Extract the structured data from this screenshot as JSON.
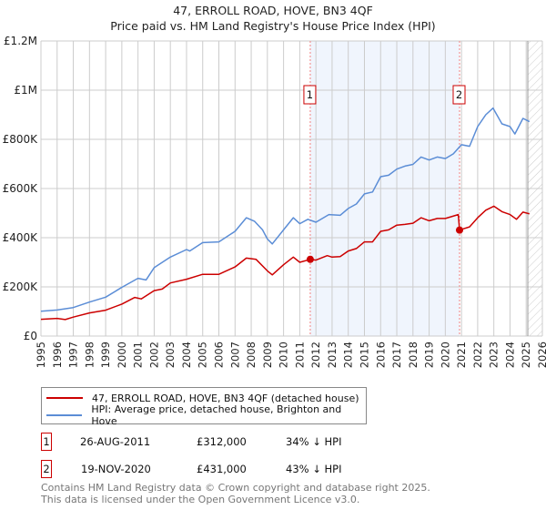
{
  "chart_data": {
    "type": "line",
    "title": "47, ERROLL ROAD, HOVE, BN3 4QF",
    "subtitle": "Price paid vs. HM Land Registry's House Price Index (HPI)",
    "xlabel": "",
    "ylabel": "",
    "xlim": [
      1995,
      2026
    ],
    "ylim": [
      0,
      1200000
    ],
    "x_ticks": [
      "1995",
      "1996",
      "1997",
      "1998",
      "1999",
      "2000",
      "2001",
      "2002",
      "2003",
      "2004",
      "2005",
      "2006",
      "2007",
      "2008",
      "2009",
      "2010",
      "2011",
      "2012",
      "2013",
      "2014",
      "2015",
      "2016",
      "2017",
      "2018",
      "2019",
      "2020",
      "2021",
      "2022",
      "2023",
      "2024",
      "2025",
      "2026"
    ],
    "y_ticks": [
      {
        "v": 0,
        "label": "£0"
      },
      {
        "v": 200000,
        "label": "£200K"
      },
      {
        "v": 400000,
        "label": "£400K"
      },
      {
        "v": 600000,
        "label": "£600K"
      },
      {
        "v": 800000,
        "label": "£800K"
      },
      {
        "v": 1000000,
        "label": "£1M"
      },
      {
        "v": 1200000,
        "label": "£1.2M"
      }
    ],
    "grid": true,
    "shaded_period": [
      2011.65,
      2020.88
    ],
    "forecast_hatch_from": 2025.1,
    "series": [
      {
        "name": "47, ERROLL ROAD, HOVE, BN3 4QF (detached house)",
        "color": "#cc0000",
        "x": [
          1995,
          1996,
          1996.5,
          1997,
          1998,
          1999,
          2000,
          2000.8,
          2001.2,
          2002,
          2002.5,
          2003,
          2004,
          2005,
          2006,
          2007,
          2007.7,
          2008.3,
          2009,
          2009.3,
          2010,
          2010.6,
          2011,
          2011.65,
          2012,
          2012.7,
          2013,
          2013.5,
          2014,
          2014.5,
          2015,
          2015.5,
          2016,
          2016.5,
          2017,
          2017.5,
          2018,
          2018.5,
          2019,
          2019.5,
          2020,
          2020.8,
          2020.88,
          2021.5,
          2022,
          2022.5,
          2023,
          2023.5,
          2024,
          2024.4,
          2024.8,
          2025.2
        ],
        "y": [
          68000,
          72000,
          67000,
          77000,
          94000,
          105000,
          130000,
          157000,
          151000,
          185000,
          191000,
          216000,
          231000,
          251000,
          251000,
          281000,
          317000,
          312000,
          265000,
          249000,
          290000,
          321000,
          300000,
          312000,
          309000,
          327000,
          321000,
          323000,
          346000,
          356000,
          383000,
          383000,
          426000,
          432000,
          451000,
          454000,
          459000,
          481000,
          469000,
          478000,
          478000,
          494000,
          431000,
          444000,
          481000,
          512000,
          528000,
          506000,
          494000,
          475000,
          504000,
          497000
        ]
      },
      {
        "name": "HPI: Average price, detached house, Brighton and Hove",
        "color": "#5b8dd6",
        "x": [
          1995,
          1996,
          1997,
          1998,
          1999,
          2000,
          2001,
          2001.5,
          2002,
          2003,
          2004,
          2004.2,
          2005,
          2006,
          2007,
          2007.7,
          2008.2,
          2008.7,
          2009,
          2009.3,
          2010,
          2010.6,
          2011,
          2011.5,
          2012,
          2012.8,
          2013.5,
          2014,
          2014.5,
          2015,
          2015.5,
          2016,
          2016.5,
          2017,
          2017.5,
          2018,
          2018.5,
          2019,
          2019.5,
          2020,
          2020.5,
          2021,
          2021.5,
          2022,
          2022.5,
          2022.95,
          2023.5,
          2024,
          2024.3,
          2024.8,
          2025.2
        ],
        "y": [
          101000,
          106000,
          116000,
          138000,
          158000,
          198000,
          235000,
          228000,
          278000,
          321000,
          352000,
          346000,
          380000,
          383000,
          426000,
          481000,
          467000,
          432000,
          395000,
          375000,
          432000,
          481000,
          457000,
          475000,
          463000,
          494000,
          491000,
          519000,
          537000,
          578000,
          586000,
          648000,
          654000,
          679000,
          691000,
          698000,
          728000,
          716000,
          728000,
          722000,
          741000,
          778000,
          772000,
          852000,
          900000,
          927000,
          863000,
          852000,
          822000,
          885000,
          872000
        ]
      }
    ],
    "sales": [
      {
        "label": "1",
        "x": 2011.65,
        "y": 312000
      },
      {
        "label": "2",
        "x": 2020.88,
        "y": 431000
      }
    ]
  },
  "legend": {
    "items": [
      {
        "label": "47, ERROLL ROAD, HOVE, BN3 4QF (detached house)",
        "color": "#cc0000"
      },
      {
        "label": "HPI: Average price, detached house, Brighton and Hove",
        "color": "#5b8dd6"
      }
    ]
  },
  "transactions": [
    {
      "num": "1",
      "date": "26-AUG-2011",
      "price": "£312,000",
      "hpi": "34% ↓ HPI"
    },
    {
      "num": "2",
      "date": "19-NOV-2020",
      "price": "£431,000",
      "hpi": "43% ↓ HPI"
    }
  ],
  "footer": {
    "line1": "Contains HM Land Registry data © Crown copyright and database right 2025.",
    "line2": "This data is licensed under the Open Government Licence v3.0."
  }
}
